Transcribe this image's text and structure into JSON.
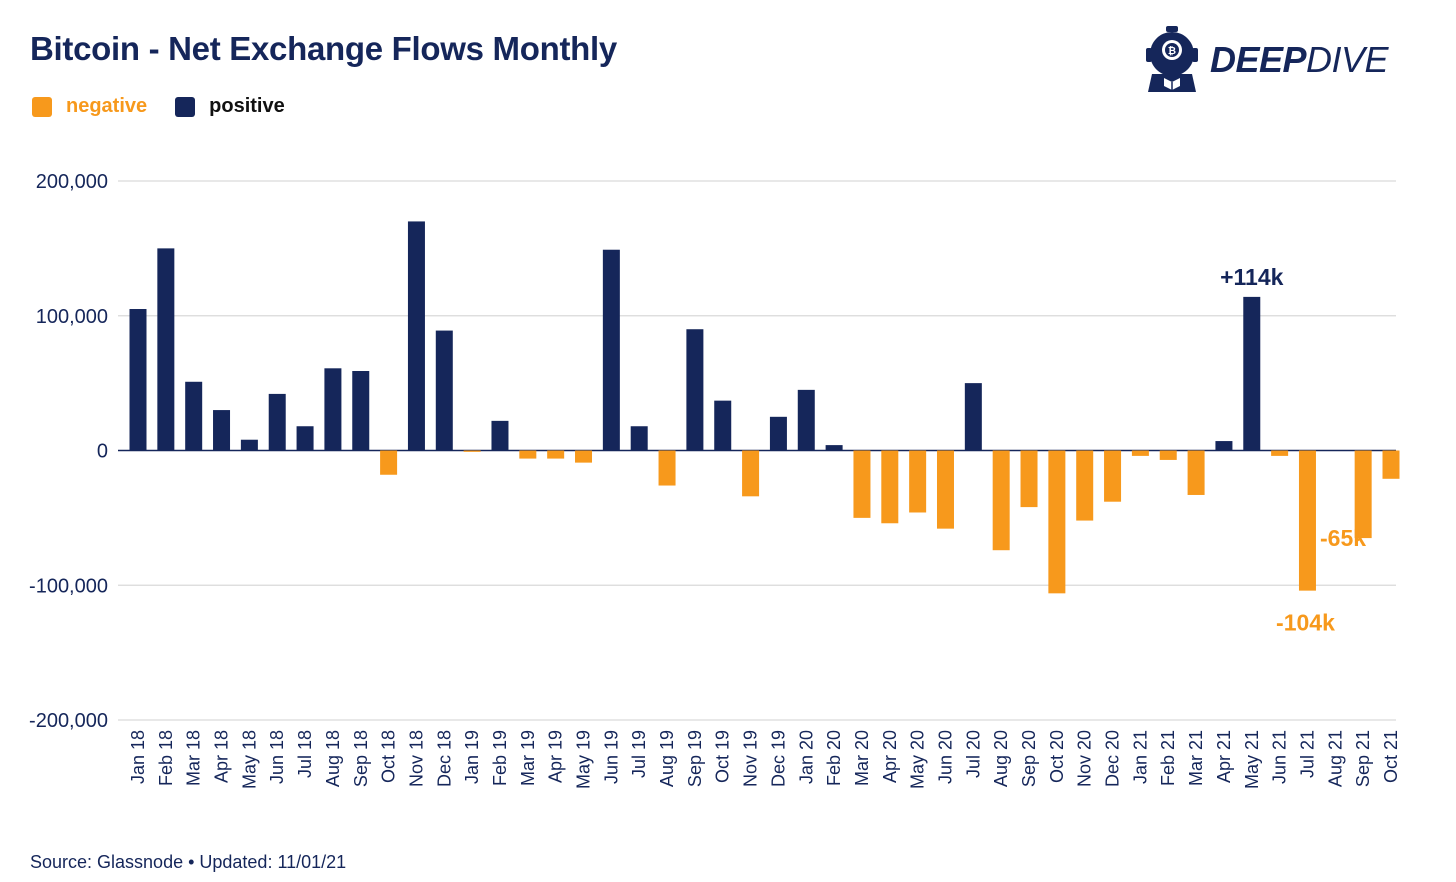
{
  "title": "Bitcoin - Net Exchange Flows Monthly",
  "brand": {
    "name_bold": "DEEP",
    "name_light": "DIVE",
    "logo_icon": "diver-helmet-icon"
  },
  "source": "Source: Glassnode • Updated: 11/01/21",
  "colors": {
    "positive": "#15265a",
    "negative": "#f7991c",
    "grid": "#d9d9d9",
    "axis": "#15265a"
  },
  "chart_data": {
    "type": "bar",
    "title": "Bitcoin - Net Exchange Flows Monthly",
    "xlabel": "",
    "ylabel": "",
    "ylim": [
      -200000,
      200000
    ],
    "yticks": [
      200000,
      100000,
      0,
      -100000,
      -200000
    ],
    "ytick_labels": [
      "200,000",
      "100,000",
      "0",
      "-100,000",
      "-200,000"
    ],
    "grid": true,
    "legend": {
      "placement": "top-left",
      "entries": [
        {
          "name": "negative",
          "color": "#f7991c"
        },
        {
          "name": "positive",
          "color": "#15265a"
        }
      ]
    },
    "categories": [
      "Jan 18",
      "Feb 18",
      "Mar 18",
      "Apr 18",
      "May 18",
      "Jun 18",
      "Jul 18",
      "Aug 18",
      "Sep 18",
      "Oct 18",
      "Nov 18",
      "Dec 18",
      "Jan 19",
      "Feb 19",
      "Mar 19",
      "Apr 19",
      "May 19",
      "Jun 19",
      "Jul 19",
      "Aug 19",
      "Sep 19",
      "Oct 19",
      "Nov 19",
      "Dec 19",
      "Jan 20",
      "Feb 20",
      "Mar 20",
      "Apr 20",
      "May 20",
      "Jun 20",
      "Jul 20",
      "Aug 20",
      "Sep 20",
      "Oct 20",
      "Nov 20",
      "Dec 20",
      "Jan 21",
      "Feb 21",
      "Mar 21",
      "Apr 21",
      "May 21",
      "Jun 21",
      "Jul 21",
      "Aug 21",
      "Sep 21",
      "Oct 21"
    ],
    "values": [
      105000,
      150000,
      51000,
      30000,
      8000,
      42000,
      18000,
      61000,
      59000,
      -18000,
      170000,
      89000,
      -1000,
      22000,
      -6000,
      -6000,
      -9000,
      149000,
      18000,
      -26000,
      90000,
      37000,
      -34000,
      25000,
      45000,
      4000,
      -50000,
      -54000,
      -46000,
      -58000,
      50000,
      -74000,
      -42000,
      -106000,
      -52000,
      -38000,
      -4000,
      -7000,
      -33000,
      7000,
      114000,
      -4000,
      -104000,
      0,
      -65000,
      -21000
    ],
    "annotations": [
      {
        "category": "May 21",
        "text": "+114k",
        "color": "#15265a"
      },
      {
        "category": "Sep 21",
        "text": "-65k",
        "color": "#f7991c"
      },
      {
        "category": "Jul 21",
        "text": "-104k",
        "color": "#f7991c"
      }
    ]
  }
}
